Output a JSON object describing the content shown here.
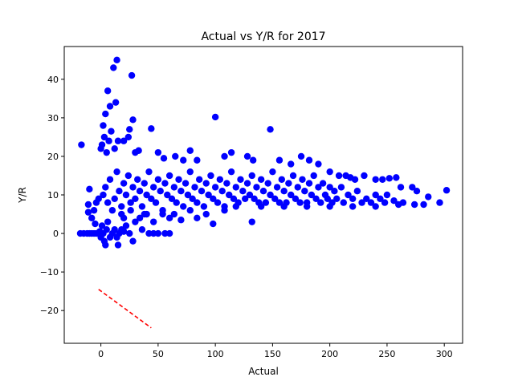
{
  "chart_data": {
    "type": "scatter",
    "title": "Actual vs Y/R for 2017",
    "xlabel": "Actual",
    "ylabel": "Y/R",
    "xlim": [
      -32,
      316
    ],
    "ylim": [
      -28.5,
      48.5
    ],
    "xticks": [
      0,
      50,
      100,
      150,
      200,
      250,
      300
    ],
    "yticks": [
      -20,
      -10,
      0,
      10,
      20,
      30,
      40
    ],
    "grid": false,
    "series": [
      {
        "kind": "scatter",
        "color": "#0000ff",
        "points": [
          [
            -17,
            23
          ],
          [
            -18,
            0
          ],
          [
            -15,
            0
          ],
          [
            -12,
            0
          ],
          [
            -10,
            0
          ],
          [
            -8,
            0
          ],
          [
            -6,
            0
          ],
          [
            -4,
            0
          ],
          [
            -2,
            0
          ],
          [
            -10,
            11.5
          ],
          [
            -11,
            7.5
          ],
          [
            -11,
            5.5
          ],
          [
            -8,
            4
          ],
          [
            -6,
            6
          ],
          [
            -5,
            2.5
          ],
          [
            -4,
            8
          ],
          [
            -2,
            9
          ],
          [
            -1,
            0.5
          ],
          [
            0,
            -1
          ],
          [
            1,
            2
          ],
          [
            2,
            0
          ],
          [
            3,
            -2
          ],
          [
            4,
            -3
          ],
          [
            5,
            1
          ],
          [
            6,
            3
          ],
          [
            8,
            -1
          ],
          [
            10,
            0
          ],
          [
            12,
            1
          ],
          [
            14,
            -1
          ],
          [
            15,
            -3
          ],
          [
            16,
            0
          ],
          [
            18,
            1
          ],
          [
            20,
            0.5
          ],
          [
            22,
            2
          ],
          [
            25,
            0
          ],
          [
            28,
            -2
          ],
          [
            30,
            3
          ],
          [
            34,
            4
          ],
          [
            38,
            5
          ],
          [
            42,
            0
          ],
          [
            46,
            0
          ],
          [
            50,
            0
          ],
          [
            56,
            0
          ],
          [
            60,
            0
          ],
          [
            0,
            22
          ],
          [
            1,
            23
          ],
          [
            3,
            25
          ],
          [
            5,
            21
          ],
          [
            7,
            24
          ],
          [
            9,
            26.5
          ],
          [
            12,
            22
          ],
          [
            15,
            24
          ],
          [
            2,
            28
          ],
          [
            4,
            31
          ],
          [
            6,
            37
          ],
          [
            8,
            33
          ],
          [
            11,
            43
          ],
          [
            13,
            34
          ],
          [
            14,
            45
          ],
          [
            20,
            24
          ],
          [
            24,
            25
          ],
          [
            25,
            27
          ],
          [
            27,
            41
          ],
          [
            28,
            29.5
          ],
          [
            30,
            21
          ],
          [
            33,
            21.5
          ],
          [
            44,
            27.2
          ],
          [
            50,
            21
          ],
          [
            55,
            19.5
          ],
          [
            65,
            20
          ],
          [
            72,
            19
          ],
          [
            78,
            21.5
          ],
          [
            84,
            19
          ],
          [
            100,
            30.2
          ],
          [
            108,
            20
          ],
          [
            114,
            21
          ],
          [
            128,
            20
          ],
          [
            133,
            19
          ],
          [
            148,
            27
          ],
          [
            156,
            19
          ],
          [
            166,
            18
          ],
          [
            175,
            20
          ],
          [
            182,
            19
          ],
          [
            190,
            18
          ],
          [
            200,
            16
          ],
          [
            208,
            15
          ],
          [
            214,
            15
          ],
          [
            218,
            14.5
          ],
          [
            222,
            14
          ],
          [
            230,
            15
          ],
          [
            240,
            14
          ],
          [
            246,
            14
          ],
          [
            252,
            14.3
          ],
          [
            258,
            14.5
          ],
          [
            262,
            12
          ],
          [
            272,
            12
          ],
          [
            276,
            11
          ],
          [
            286,
            9.5
          ],
          [
            296,
            8
          ],
          [
            302,
            11.2
          ],
          [
            2,
            10
          ],
          [
            4,
            12
          ],
          [
            6,
            8
          ],
          [
            8,
            14
          ],
          [
            10,
            6
          ],
          [
            12,
            9
          ],
          [
            14,
            16
          ],
          [
            16,
            11
          ],
          [
            18,
            7
          ],
          [
            20,
            13
          ],
          [
            22,
            10
          ],
          [
            24,
            15
          ],
          [
            26,
            8
          ],
          [
            28,
            12
          ],
          [
            30,
            9
          ],
          [
            32,
            14
          ],
          [
            34,
            11
          ],
          [
            36,
            7
          ],
          [
            38,
            13
          ],
          [
            40,
            10
          ],
          [
            42,
            16
          ],
          [
            44,
            9
          ],
          [
            46,
            12
          ],
          [
            48,
            8
          ],
          [
            50,
            14
          ],
          [
            52,
            11
          ],
          [
            54,
            6
          ],
          [
            56,
            13
          ],
          [
            58,
            10
          ],
          [
            60,
            15
          ],
          [
            62,
            9
          ],
          [
            64,
            12
          ],
          [
            66,
            8
          ],
          [
            68,
            14
          ],
          [
            70,
            11
          ],
          [
            72,
            7
          ],
          [
            74,
            13
          ],
          [
            76,
            10
          ],
          [
            78,
            16
          ],
          [
            80,
            9
          ],
          [
            82,
            12
          ],
          [
            84,
            8
          ],
          [
            86,
            14
          ],
          [
            88,
            11
          ],
          [
            90,
            7
          ],
          [
            92,
            13
          ],
          [
            94,
            10
          ],
          [
            96,
            15
          ],
          [
            98,
            9
          ],
          [
            100,
            12
          ],
          [
            102,
            8
          ],
          [
            104,
            14
          ],
          [
            106,
            11
          ],
          [
            108,
            7
          ],
          [
            110,
            13
          ],
          [
            112,
            10
          ],
          [
            114,
            16
          ],
          [
            116,
            9
          ],
          [
            118,
            12
          ],
          [
            120,
            8
          ],
          [
            122,
            14
          ],
          [
            124,
            11
          ],
          [
            126,
            9
          ],
          [
            128,
            13
          ],
          [
            130,
            10
          ],
          [
            132,
            15
          ],
          [
            134,
            9
          ],
          [
            136,
            12
          ],
          [
            138,
            8
          ],
          [
            140,
            14
          ],
          [
            142,
            11
          ],
          [
            144,
            8
          ],
          [
            146,
            13
          ],
          [
            148,
            10
          ],
          [
            150,
            16
          ],
          [
            152,
            9
          ],
          [
            154,
            12
          ],
          [
            156,
            8
          ],
          [
            158,
            14
          ],
          [
            160,
            11
          ],
          [
            162,
            8
          ],
          [
            164,
            13
          ],
          [
            166,
            10
          ],
          [
            168,
            15
          ],
          [
            170,
            9
          ],
          [
            172,
            12
          ],
          [
            174,
            8
          ],
          [
            176,
            14
          ],
          [
            178,
            11
          ],
          [
            180,
            8
          ],
          [
            182,
            13
          ],
          [
            184,
            10
          ],
          [
            186,
            15
          ],
          [
            188,
            9
          ],
          [
            190,
            12
          ],
          [
            192,
            8
          ],
          [
            194,
            13
          ],
          [
            196,
            10
          ],
          [
            198,
            9
          ],
          [
            200,
            12
          ],
          [
            202,
            8
          ],
          [
            204,
            11
          ],
          [
            206,
            9
          ],
          [
            210,
            12
          ],
          [
            212,
            8
          ],
          [
            216,
            10
          ],
          [
            220,
            9
          ],
          [
            224,
            11
          ],
          [
            228,
            8
          ],
          [
            232,
            9
          ],
          [
            236,
            8
          ],
          [
            240,
            10
          ],
          [
            244,
            9
          ],
          [
            248,
            8
          ],
          [
            250,
            10
          ],
          [
            256,
            8.5
          ],
          [
            264,
            8
          ],
          [
            274,
            7.5
          ],
          [
            282,
            7.5
          ],
          [
            132,
            3
          ],
          [
            98,
            2.5
          ],
          [
            84,
            4
          ],
          [
            70,
            3.5
          ],
          [
            60,
            4
          ],
          [
            46,
            3
          ],
          [
            36,
            1
          ],
          [
            20,
            4
          ],
          [
            18,
            5
          ],
          [
            26,
            6
          ],
          [
            40,
            5
          ],
          [
            54,
            5
          ],
          [
            64,
            5
          ],
          [
            78,
            6
          ],
          [
            92,
            5
          ],
          [
            108,
            6
          ],
          [
            118,
            7
          ],
          [
            140,
            7
          ],
          [
            160,
            7
          ],
          [
            180,
            7
          ],
          [
            200,
            7
          ],
          [
            220,
            7
          ],
          [
            240,
            7
          ],
          [
            260,
            7.5
          ]
        ]
      },
      {
        "kind": "line",
        "color": "#ff0000",
        "linestyle": "dashed",
        "points": [
          [
            -2,
            -14.5
          ],
          [
            44,
            -24.5
          ]
        ]
      }
    ]
  }
}
